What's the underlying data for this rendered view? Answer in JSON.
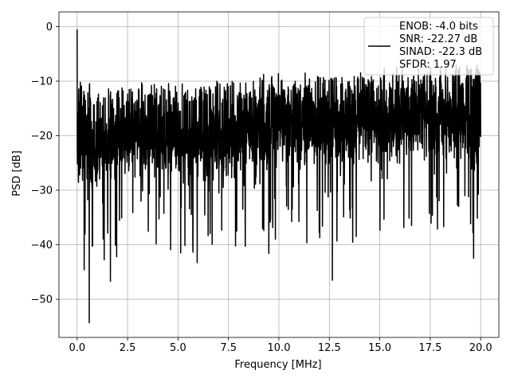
{
  "chart_data": {
    "type": "line",
    "title": "",
    "xlabel": "Frequency [MHz]",
    "ylabel": "PSD [dB]",
    "xlim": [
      -0.9,
      20.9
    ],
    "ylim": [
      -57,
      2.7
    ],
    "x_ticks": [
      0.0,
      2.5,
      5.0,
      7.5,
      10.0,
      12.5,
      15.0,
      17.5,
      20.0
    ],
    "x_tick_labels": [
      "0.0",
      "2.5",
      "5.0",
      "7.5",
      "10.0",
      "12.5",
      "15.0",
      "17.5",
      "20.0"
    ],
    "y_ticks": [
      0,
      -10,
      -20,
      -30,
      -40,
      -50
    ],
    "y_tick_labels": [
      "0",
      "−10",
      "−20",
      "−30",
      "−40",
      "−50"
    ],
    "grid": true,
    "legend_position": "top-right",
    "legend": {
      "entries": [
        "ENOB: -4.0 bits",
        "SNR: -22.27 dB",
        "SINAD: -22.3 dB",
        "SFDR: 1.97"
      ]
    },
    "series": [
      {
        "color": "#000000",
        "x_range": [
          0,
          20
        ],
        "band_center": [
          [
            0,
            -20
          ],
          [
            1,
            -22
          ],
          [
            3,
            -19
          ],
          [
            6,
            -20
          ],
          [
            10,
            -18
          ],
          [
            14,
            -18
          ],
          [
            17,
            -16
          ],
          [
            20,
            -18
          ]
        ],
        "band_upper": [
          [
            0.3,
            -9
          ],
          [
            1,
            -12
          ],
          [
            3,
            -10
          ],
          [
            6,
            -10
          ],
          [
            10,
            -9
          ],
          [
            14,
            -9
          ],
          [
            17,
            -7
          ],
          [
            20,
            -7
          ]
        ],
        "notable_points": [
          {
            "x": 0.0,
            "y": -0.5
          },
          {
            "x": 0.6,
            "y": -54.3
          },
          {
            "x": 0.35,
            "y": -44.6
          },
          {
            "x": 1.65,
            "y": -46.7
          },
          {
            "x": 5.95,
            "y": -43.3
          },
          {
            "x": 9.5,
            "y": -41.6
          },
          {
            "x": 12.65,
            "y": -46.5
          },
          {
            "x": 19.65,
            "y": -42.5
          }
        ]
      }
    ]
  }
}
